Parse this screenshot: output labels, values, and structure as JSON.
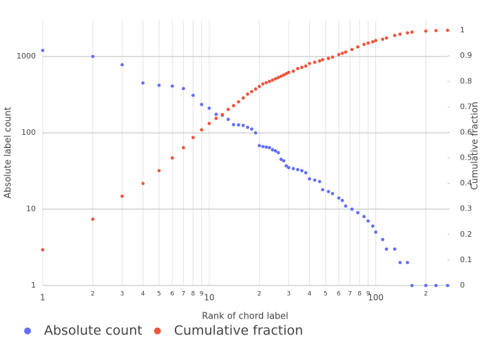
{
  "chart_data": {
    "type": "scatter",
    "x_label": "Rank of chord label",
    "y_label": "Absolute label count",
    "y2_label": "Cumulative fraction",
    "x": [
      1,
      2,
      3,
      4,
      5,
      6,
      7,
      8,
      9,
      10,
      11,
      12,
      13,
      14,
      15,
      16,
      17,
      18,
      19,
      20,
      21,
      22,
      23,
      24,
      25,
      26,
      27,
      28,
      29,
      30,
      32,
      34,
      36,
      38,
      40,
      43,
      46,
      48,
      52,
      55,
      60,
      63,
      66,
      72,
      78,
      85,
      90,
      96,
      100,
      110,
      116,
      130,
      140,
      155,
      165,
      200,
      230,
      270
    ],
    "series": [
      {
        "name": "Absolute count",
        "color": "#636efa",
        "values": [
          1200,
          1000,
          780,
          450,
          420,
          410,
          380,
          310,
          235,
          210,
          175,
          170,
          150,
          128,
          127,
          125,
          118,
          112,
          100,
          68,
          66,
          65,
          64,
          60,
          58,
          55,
          45,
          43,
          37,
          35,
          34,
          33,
          32,
          30,
          25,
          24,
          23,
          18,
          17,
          16,
          14,
          13,
          11,
          10,
          9,
          8,
          7,
          6,
          5,
          4,
          3,
          3,
          2,
          2,
          1,
          1,
          1,
          1
        ]
      },
      {
        "name": "Cumulative fraction",
        "color": "#ef553b",
        "axis": "y2",
        "values": [
          0.14,
          0.26,
          0.35,
          0.4,
          0.45,
          0.5,
          0.54,
          0.58,
          0.61,
          0.635,
          0.655,
          0.67,
          0.69,
          0.705,
          0.72,
          0.735,
          0.75,
          0.76,
          0.77,
          0.78,
          0.79,
          0.795,
          0.8,
          0.805,
          0.81,
          0.815,
          0.82,
          0.825,
          0.83,
          0.835,
          0.84,
          0.85,
          0.855,
          0.86,
          0.87,
          0.875,
          0.88,
          0.885,
          0.89,
          0.895,
          0.905,
          0.91,
          0.915,
          0.925,
          0.935,
          0.945,
          0.95,
          0.955,
          0.96,
          0.965,
          0.97,
          0.98,
          0.985,
          0.99,
          0.993,
          0.997,
          0.999,
          1
        ]
      }
    ],
    "xlog": true,
    "ylog": true,
    "xlim": [
      1,
      270
    ],
    "ylim": [
      1,
      2950
    ],
    "y2lim": [
      0,
      1.038
    ],
    "xticks": [
      1,
      2,
      3,
      4,
      5,
      6,
      7,
      8,
      9,
      10,
      {
        "value": 20,
        "label": "2"
      },
      {
        "value": 30,
        "label": "3"
      },
      {
        "value": 40,
        "label": "4"
      },
      {
        "value": 50,
        "label": "5"
      },
      {
        "value": 60,
        "label": "6"
      },
      {
        "value": 70,
        "label": "7"
      },
      {
        "value": 80,
        "label": "8"
      },
      {
        "value": 90,
        "label": "9"
      },
      100,
      {
        "value": 200,
        "label": "2"
      }
    ],
    "yticks": [
      1,
      10,
      100,
      1000
    ],
    "y2ticks": [
      0,
      0.1,
      0.2,
      0.3,
      0.4,
      0.5,
      0.6,
      0.7,
      0.8,
      0.9,
      1
    ],
    "grid": true,
    "legend": "bottom-left"
  }
}
